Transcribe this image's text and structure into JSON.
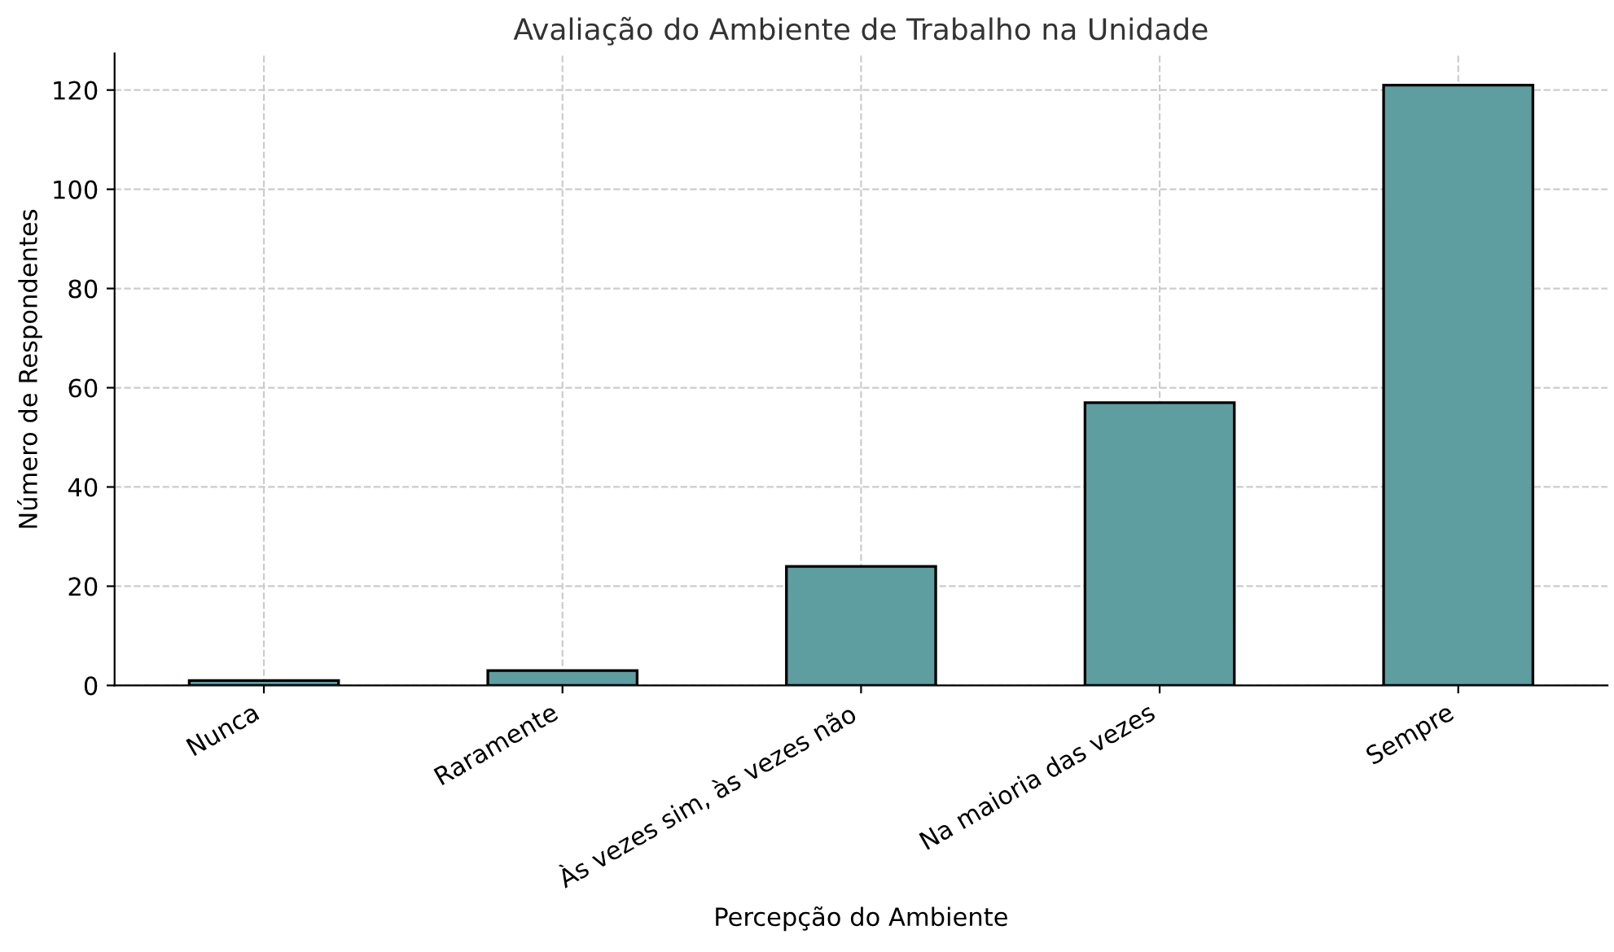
{
  "chart_data": {
    "type": "bar",
    "title": "Avaliação do Ambiente de Trabalho na Unidade",
    "xlabel": "Percepção do Ambiente",
    "ylabel": "Número de Respondentes",
    "categories": [
      "Nunca",
      "Raramente",
      "Às vezes sim, às vezes não",
      "Na maioria das vezes",
      "Sempre"
    ],
    "values": [
      1,
      3,
      24,
      57,
      121
    ],
    "color": "#5f9ea0",
    "ylim": [
      0,
      127.4
    ],
    "yticks": [
      0,
      20,
      40,
      60,
      80,
      100,
      120
    ],
    "grid": true
  }
}
